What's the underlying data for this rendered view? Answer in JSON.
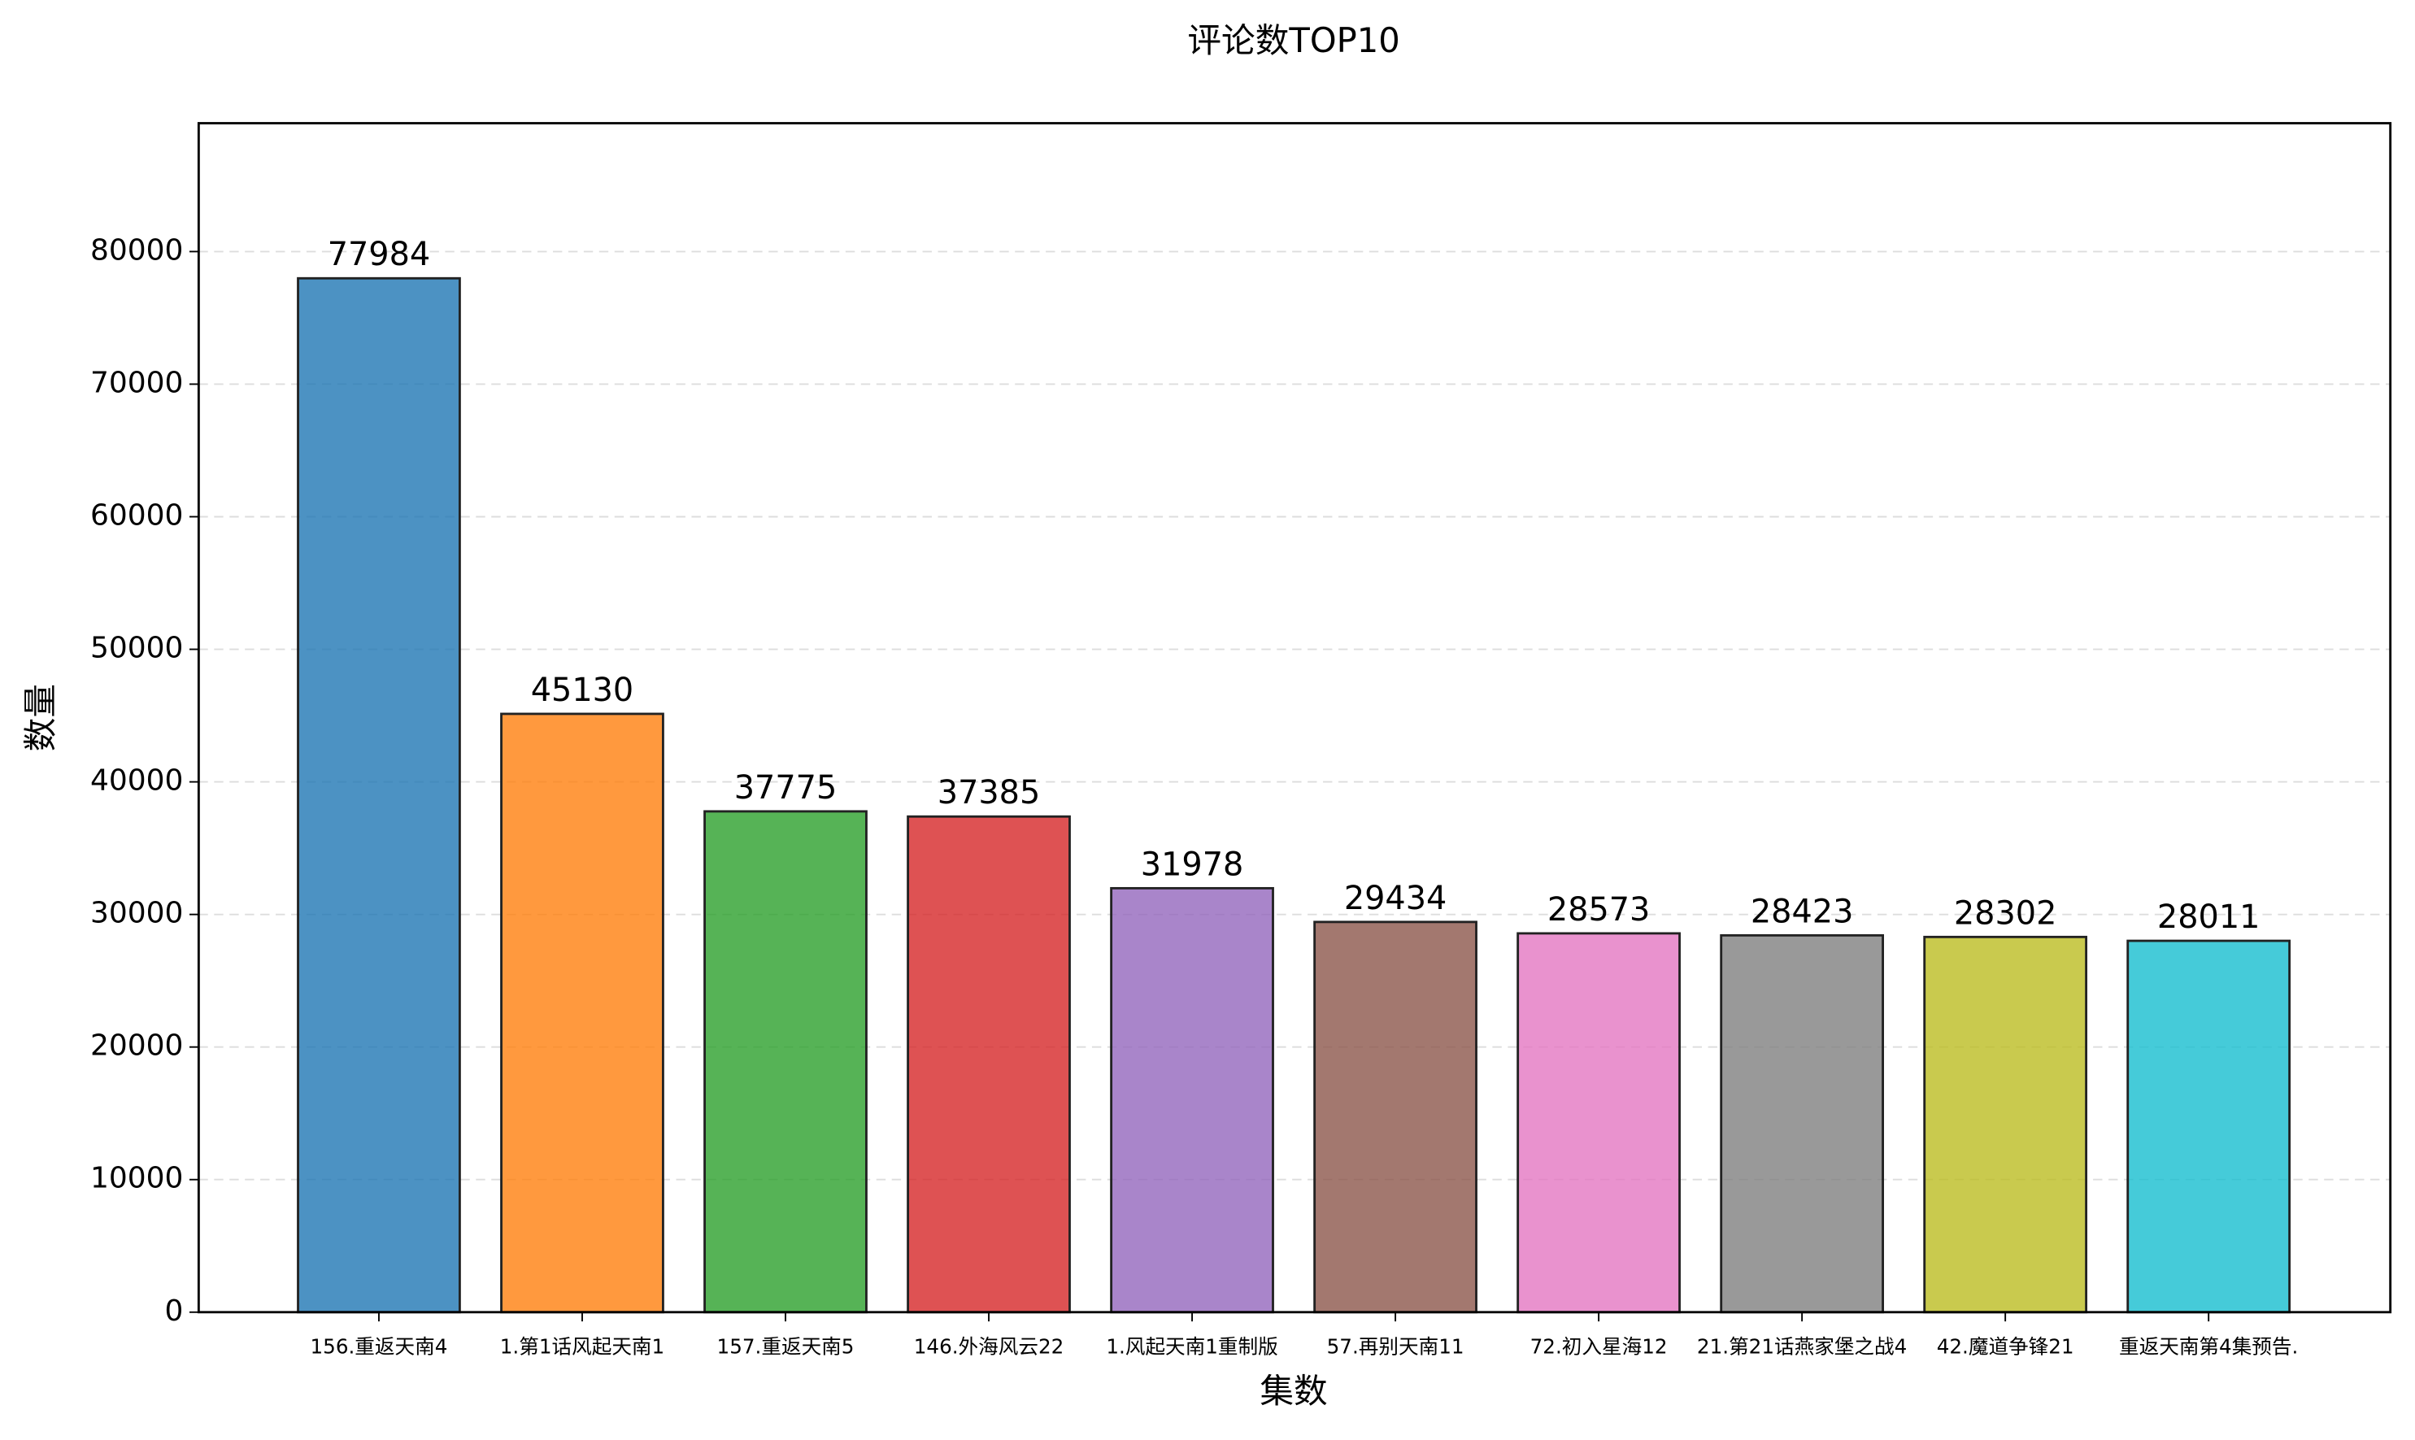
{
  "chart_data": {
    "type": "bar",
    "title": "评论数TOP10",
    "x_label": "集数",
    "y_label": "数量",
    "categories": [
      "156.重返天南4",
      "1.第1话风起天南1",
      "157.重返天南5",
      "146.外海风云22",
      "1.风起天南1重制版",
      "57.再别天南11",
      "72.初入星海12",
      "21.第21话燕家堡之战4",
      "42.魔道争锋21",
      "重返天南第4集预告."
    ],
    "values": [
      77984,
      45130,
      37775,
      37385,
      31978,
      29434,
      28573,
      28423,
      28302,
      28011
    ],
    "colors": [
      "#1f77b4",
      "#ff7f0e",
      "#2ca02c",
      "#d62728",
      "#9467bd",
      "#8c564b",
      "#e377c2",
      "#7f7f7f",
      "#bcbd22",
      "#17becf"
    ],
    "ylim": [
      0,
      89682
    ],
    "yticks": [
      0,
      10000,
      20000,
      30000,
      40000,
      50000,
      60000,
      70000,
      80000
    ],
    "grid": true
  }
}
